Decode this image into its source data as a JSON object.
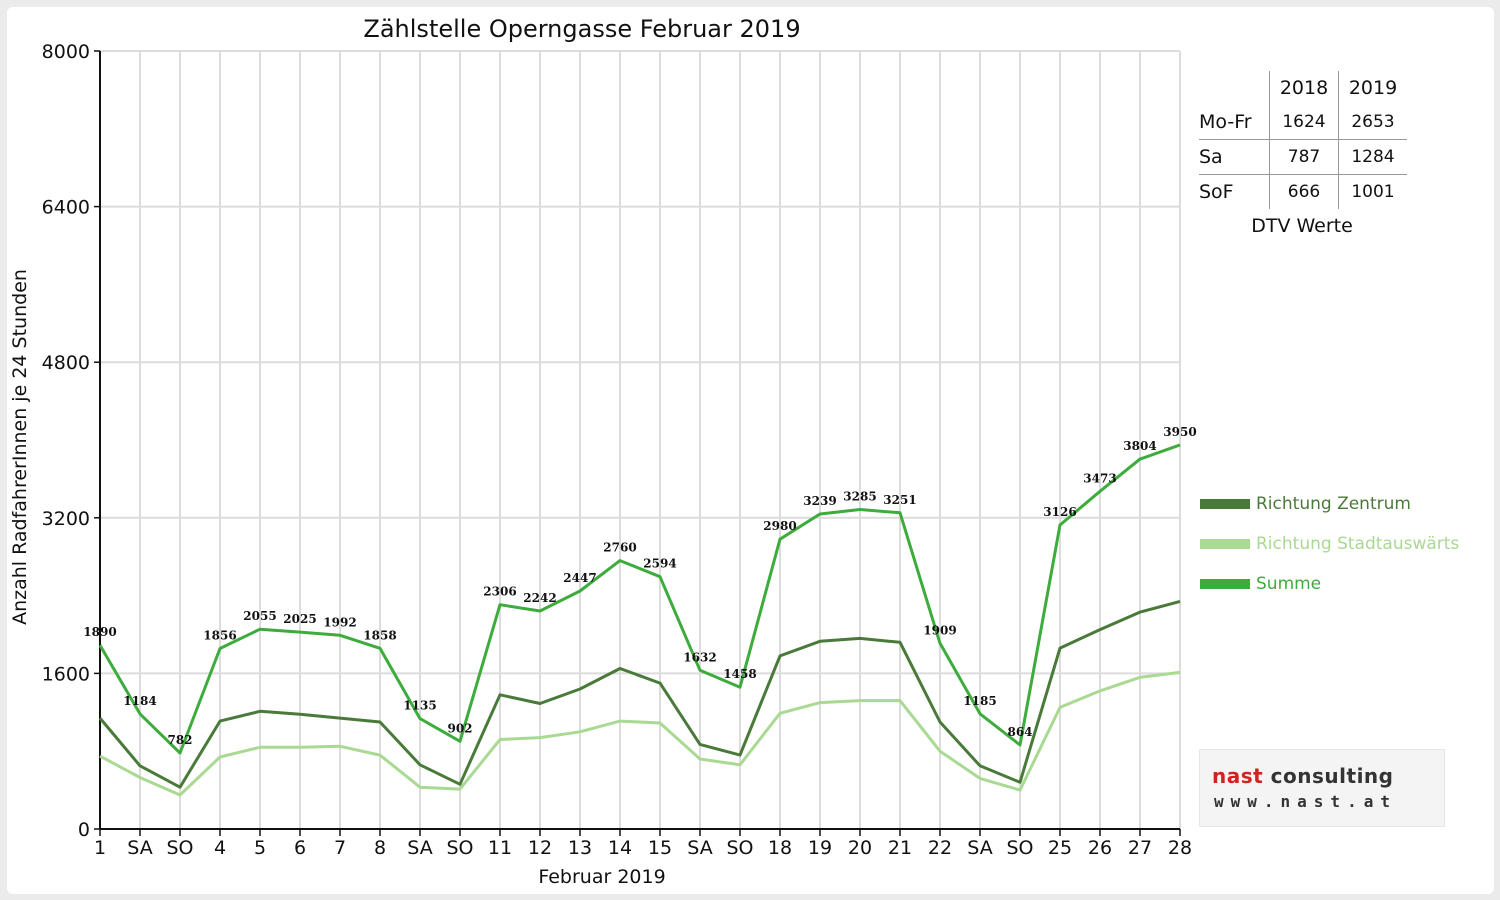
{
  "chart_data": {
    "type": "line",
    "title": "Zählstelle Operngasse Februar 2019",
    "xlabel": "Februar 2019",
    "ylabel": "Anzahl RadfahrerInnen je 24 Stunden",
    "ylim": [
      0,
      8000
    ],
    "yticks": [
      0,
      1600,
      3200,
      4800,
      6400,
      8000
    ],
    "categories": [
      "1",
      "SA",
      "SO",
      "4",
      "5",
      "6",
      "7",
      "8",
      "SA",
      "SO",
      "11",
      "12",
      "13",
      "14",
      "15",
      "SA",
      "SO",
      "18",
      "19",
      "20",
      "21",
      "22",
      "SA",
      "SO",
      "25",
      "26",
      "27",
      "28"
    ],
    "weekend_colors": {
      "SA": "#111111",
      "SO": "#e00000"
    },
    "series": [
      {
        "name": "Richtung Zentrum",
        "color": "#4a7a3a",
        "values": [
          1140,
          650,
          430,
          1110,
          1210,
          1180,
          1140,
          1100,
          660,
          460,
          1380,
          1290,
          1440,
          1650,
          1500,
          870,
          760,
          1780,
          1930,
          1960,
          1920,
          1100,
          650,
          480,
          1860,
          2050,
          2230,
          2340
        ]
      },
      {
        "name": "Richtung Stadtauswärts",
        "color": "#a9d992",
        "values": [
          750,
          530,
          350,
          740,
          840,
          840,
          850,
          760,
          430,
          410,
          920,
          940,
          1000,
          1110,
          1090,
          720,
          660,
          1190,
          1300,
          1320,
          1320,
          800,
          520,
          400,
          1250,
          1420,
          1560,
          1610
        ]
      },
      {
        "name": "Summe",
        "color": "#3dac3d",
        "values": [
          1890,
          1184,
          782,
          1856,
          2055,
          2025,
          1992,
          1858,
          1135,
          902,
          2306,
          2242,
          2447,
          2760,
          2594,
          1632,
          1458,
          2980,
          3239,
          3285,
          3251,
          1909,
          1185,
          864,
          3126,
          3473,
          3804,
          3950
        ]
      }
    ],
    "data_labels": [
      "1890",
      "1184",
      "782",
      "1856",
      "2055",
      "2025",
      "1992",
      "1858",
      "1135",
      "902",
      "2306",
      "2242",
      "2447",
      "2760",
      "2594",
      "1632",
      "1458",
      "2980",
      "3239",
      "3285",
      "3251",
      "1909",
      "1185",
      "864",
      "3126",
      "3473",
      "3804",
      "3950"
    ],
    "grid": true,
    "legend_position": "right"
  },
  "dtv_table": {
    "headers": [
      "2018",
      "2019"
    ],
    "rows": [
      {
        "label": "Mo-Fr",
        "v2018": "1624",
        "v2019": "2653"
      },
      {
        "label": "Sa",
        "v2018": "787",
        "v2019": "1284"
      },
      {
        "label": "SoF",
        "v2018": "666",
        "v2019": "1001"
      }
    ],
    "caption": "DTV Werte"
  },
  "legend": {
    "items": [
      {
        "label": "Richtung Zentrum",
        "color": "#4a7a3a"
      },
      {
        "label": "Richtung Stadtauswärts",
        "color": "#a9d992"
      },
      {
        "label": "Summe",
        "color": "#3dac3d"
      }
    ]
  },
  "logo": {
    "brand_a": "nast",
    "brand_b": "consulting",
    "url": "www.nast.at"
  }
}
